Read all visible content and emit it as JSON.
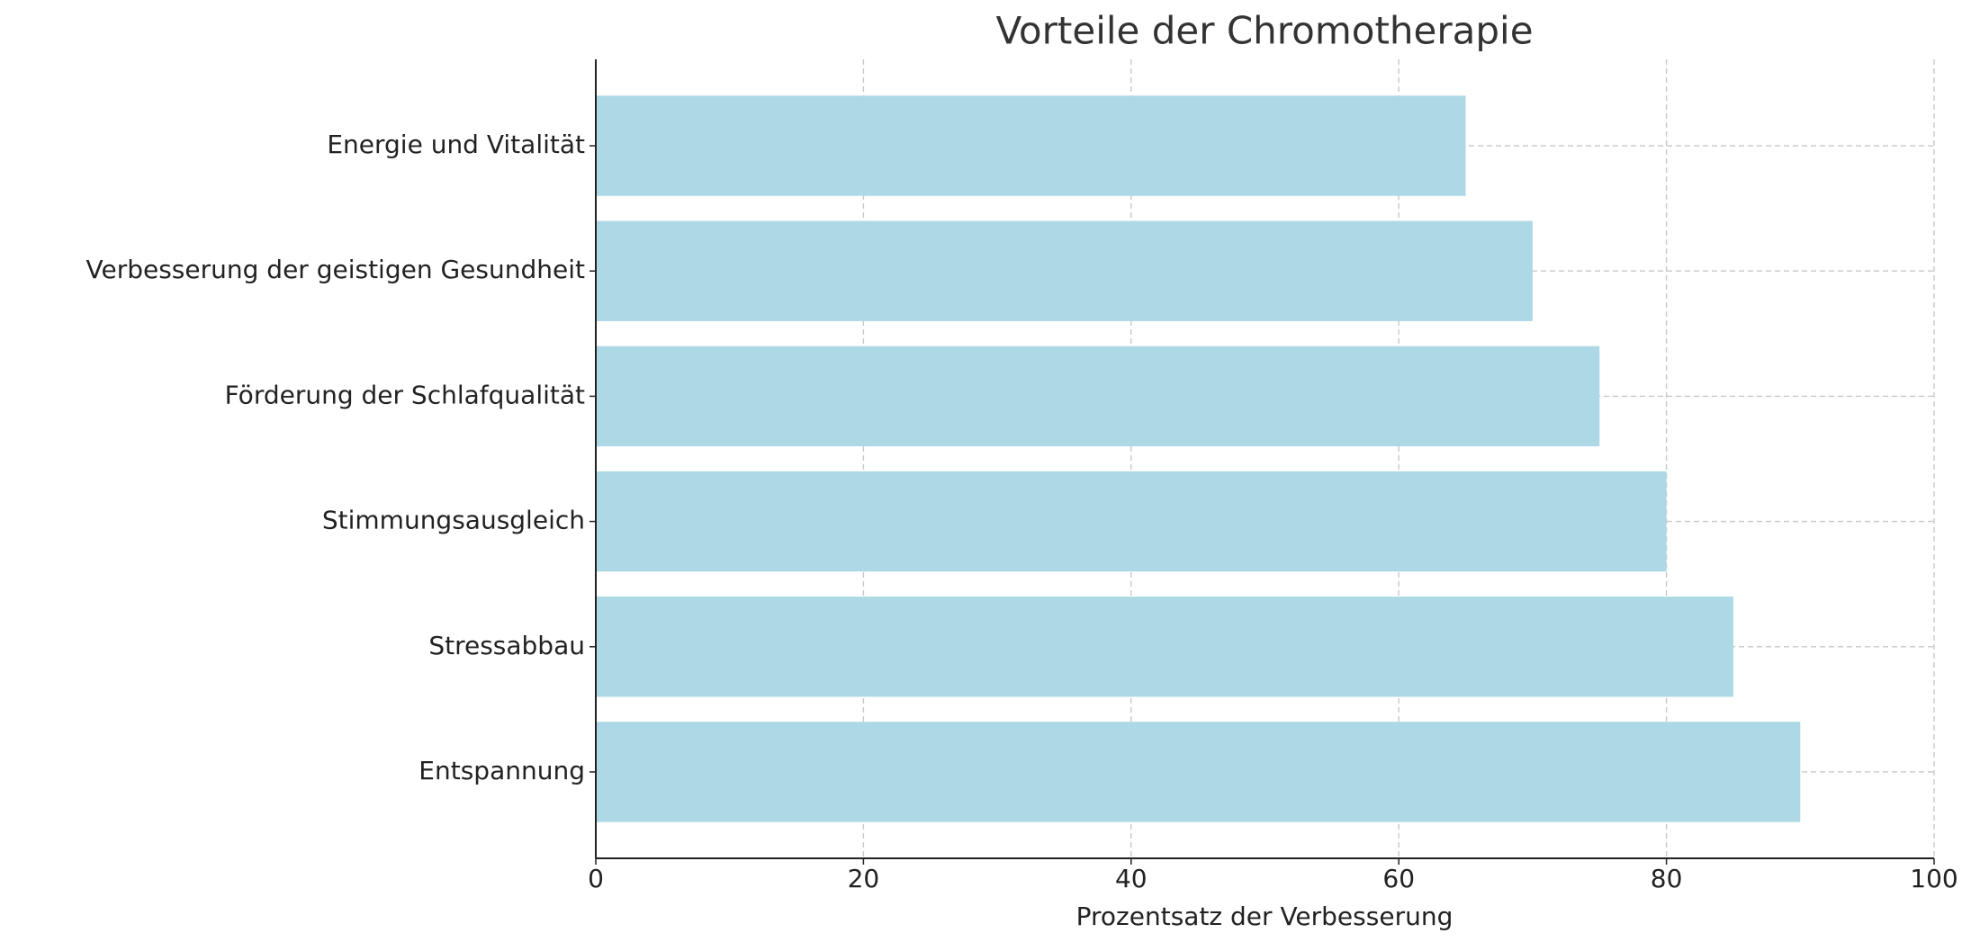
{
  "chart_data": {
    "type": "barh",
    "title": "Vorteile der Chromotherapie",
    "xlabel": "Prozentsatz der Verbesserung",
    "categories": [
      "Entspannung",
      "Stressabbau",
      "Stimmungsausgleich",
      "Förderung der Schlafqualität",
      "Verbesserung der geistigen Gesundheit",
      "Energie und Vitalität"
    ],
    "values": [
      90,
      85,
      80,
      75,
      70,
      65
    ],
    "color": "#add8e6",
    "xlim": [
      0,
      100
    ],
    "xticks": [
      0,
      20,
      40,
      60,
      80,
      100
    ],
    "grid": true
  }
}
